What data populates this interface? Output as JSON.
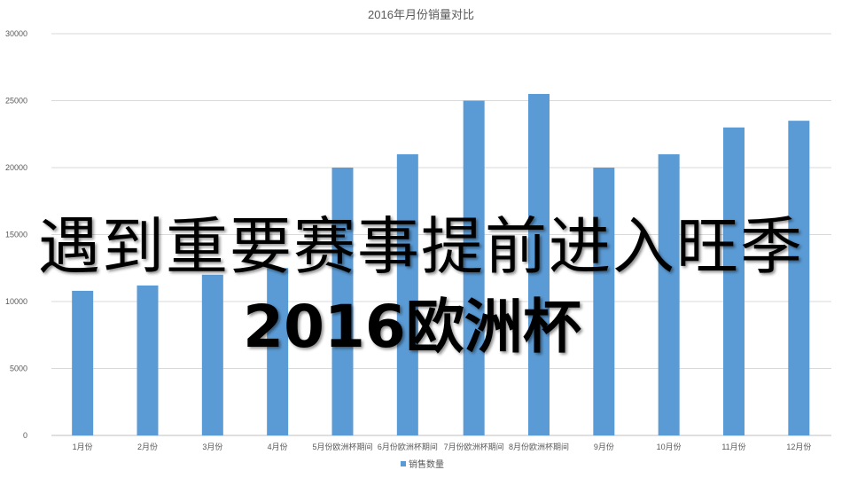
{
  "chart_data": {
    "type": "bar",
    "title": "2016年月份销量对比",
    "categories": [
      "1月份",
      "2月份",
      "3月份",
      "4月份",
      "5月份欧洲杯期间",
      "6月份欧洲杯期间",
      "7月份欧洲杯期间",
      "8月份欧洲杯期间",
      "9月份",
      "10月份",
      "11月份",
      "12月份"
    ],
    "series": [
      {
        "name": "销售数量",
        "values": [
          10800,
          11200,
          12000,
          12500,
          20000,
          21000,
          25000,
          25500,
          20000,
          21000,
          23000,
          23500
        ],
        "color": "#5b9bd5"
      }
    ],
    "xlabel": "",
    "ylabel": "",
    "ylim": [
      0,
      30000
    ],
    "yticks": [
      0,
      5000,
      10000,
      15000,
      20000,
      25000,
      30000
    ],
    "grid": true,
    "legend": "bottom"
  },
  "overlay": {
    "line1": "遇到重要赛事提前进入旺季",
    "line2": "2016欧洲杯"
  }
}
